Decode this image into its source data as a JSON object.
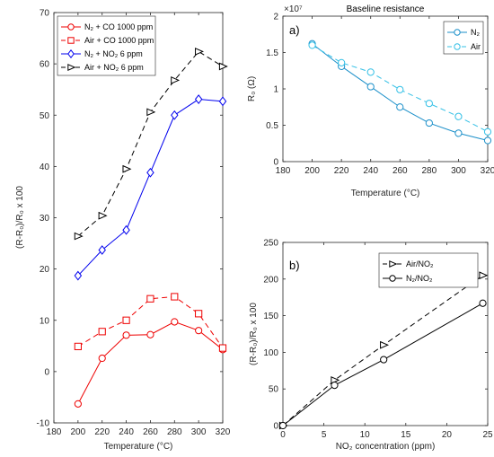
{
  "chart_data": [
    {
      "type": "line",
      "xlabel": "Temperature (°C)",
      "ylabel": "(R-R₀)/R₀ x 100",
      "xlim": [
        180,
        320
      ],
      "ylim": [
        -10,
        70
      ],
      "xticks": [
        "180",
        "200",
        "220",
        "240",
        "260",
        "280",
        "300",
        "320"
      ],
      "yticks": [
        "-10",
        "0",
        "10",
        "20",
        "30",
        "40",
        "50",
        "60",
        "70"
      ],
      "legend_position": "top-left",
      "grid": false,
      "series": [
        {
          "name": "N₂ + CO 1000 ppm",
          "color": "#ee0000",
          "dash": "solid",
          "marker": "circle",
          "x": [
            200,
            220,
            240,
            260,
            280,
            300,
            320
          ],
          "y": [
            -6.3,
            2.6,
            7.1,
            7.2,
            9.7,
            8.0,
            4.3
          ]
        },
        {
          "name": "Air + CO 1000 ppm",
          "color": "#ee0000",
          "dash": "dashed",
          "marker": "square",
          "x": [
            200,
            220,
            240,
            260,
            280,
            300,
            320
          ],
          "y": [
            4.9,
            7.8,
            10.0,
            14.2,
            14.6,
            11.3,
            4.6
          ]
        },
        {
          "name": "N₂ + NO₂ 6 ppm",
          "color": "#0000ee",
          "dash": "solid",
          "marker": "diamond",
          "x": [
            200,
            220,
            240,
            260,
            280,
            300,
            320
          ],
          "y": [
            18.7,
            23.7,
            27.6,
            38.8,
            50.0,
            53.1,
            52.7
          ]
        },
        {
          "name": "Air + NO₂ 6 ppm",
          "color": "#000000",
          "dash": "dashed",
          "marker": "triangle",
          "x": [
            200,
            220,
            240,
            260,
            280,
            300,
            320
          ],
          "y": [
            26.4,
            30.4,
            39.5,
            50.6,
            56.8,
            62.4,
            59.5
          ]
        }
      ]
    },
    {
      "type": "line",
      "title": "Baseline resistance",
      "panel_label": "a)",
      "xlabel": "Temperature (°C)",
      "ylabel": "R₀ (Ω)",
      "y_exponent": "×10⁷",
      "xlim": [
        180,
        320
      ],
      "ylim": [
        0,
        2
      ],
      "xticks": [
        "180",
        "200",
        "220",
        "240",
        "260",
        "280",
        "300",
        "320"
      ],
      "yticks": [
        "0",
        "0.5",
        "1",
        "1.5",
        "2"
      ],
      "legend_position": "top-right",
      "grid": false,
      "series": [
        {
          "name": "N₂",
          "color": "#1a8fc9",
          "dash": "solid",
          "marker": "circle",
          "x": [
            200,
            220,
            240,
            260,
            280,
            300,
            320
          ],
          "y": [
            1.62,
            1.31,
            1.03,
            0.75,
            0.53,
            0.39,
            0.29
          ]
        },
        {
          "name": "Air",
          "color": "#34c0e6",
          "dash": "dashed",
          "marker": "circle",
          "x": [
            200,
            220,
            240,
            260,
            280,
            300,
            320
          ],
          "y": [
            1.6,
            1.36,
            1.23,
            0.99,
            0.8,
            0.62,
            0.41
          ]
        }
      ]
    },
    {
      "type": "line",
      "panel_label": "b)",
      "xlabel": "NO₂ concentration (ppm)",
      "ylabel": "(R-R₀)/R₀ x 100",
      "xlim": [
        0,
        25
      ],
      "ylim": [
        0,
        250
      ],
      "xticks": [
        "0",
        "5",
        "10",
        "15",
        "20",
        "25"
      ],
      "yticks": [
        "0",
        "50",
        "100",
        "150",
        "200",
        "250"
      ],
      "legend_position": "top-right",
      "grid": false,
      "series": [
        {
          "name": "Air/NO₂",
          "color": "#000000",
          "dash": "dashed",
          "marker": "triangle",
          "x": [
            0,
            6.3,
            12.3,
            24.4
          ],
          "y": [
            0,
            62,
            110,
            205
          ]
        },
        {
          "name": "N₂/NO₂",
          "color": "#000000",
          "dash": "solid",
          "marker": "circle",
          "x": [
            0,
            6.3,
            12.3,
            24.4
          ],
          "y": [
            0,
            55,
            90,
            167
          ]
        }
      ]
    }
  ]
}
